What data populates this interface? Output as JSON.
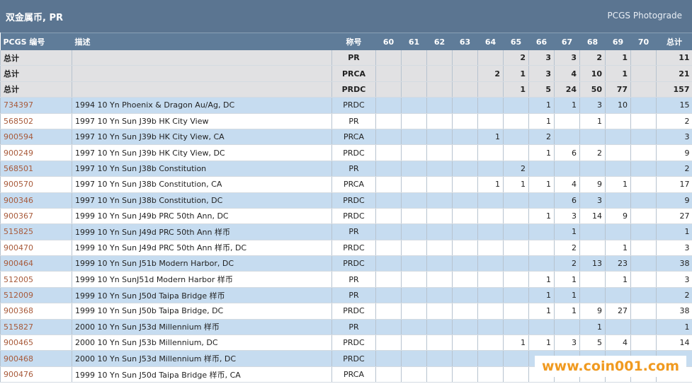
{
  "header": {
    "title": "双金属币, PR",
    "subtitle": "PCGS Photograde"
  },
  "table": {
    "columns": [
      "PCGS 编号",
      "描述",
      "称号",
      60,
      61,
      62,
      63,
      64,
      65,
      66,
      67,
      68,
      69,
      70,
      "总计"
    ],
    "rows": [
      [
        "总计",
        null,
        "PR",
        null,
        null,
        null,
        null,
        null,
        2,
        3,
        3,
        2,
        1,
        null,
        11
      ],
      [
        "总计",
        null,
        "PRCA",
        null,
        null,
        null,
        null,
        2,
        1,
        3,
        4,
        10,
        1,
        null,
        21
      ],
      [
        "总计",
        null,
        "PRDC",
        null,
        null,
        null,
        null,
        null,
        1,
        5,
        24,
        50,
        77,
        null,
        157
      ],
      [
        "734397",
        "1994 10 Yn Phoenix & Dragon Au/Ag, DC",
        "PRDC",
        null,
        null,
        null,
        null,
        null,
        null,
        1,
        1,
        3,
        10,
        null,
        15
      ],
      [
        "568502",
        "1997 10 Yn Sun J39b HK City View",
        "PR",
        null,
        null,
        null,
        null,
        null,
        null,
        1,
        null,
        1,
        null,
        null,
        2
      ],
      [
        "900594",
        "1997 10 Yn Sun J39b HK City View, CA",
        "PRCA",
        null,
        null,
        null,
        null,
        1,
        null,
        2,
        null,
        null,
        null,
        null,
        3
      ],
      [
        "900249",
        "1997 10 Yn Sun J39b HK City View, DC",
        "PRDC",
        null,
        null,
        null,
        null,
        null,
        null,
        1,
        6,
        2,
        null,
        null,
        9
      ],
      [
        "568501",
        "1997 10 Yn Sun J38b Constitution",
        "PR",
        null,
        null,
        null,
        null,
        null,
        2,
        null,
        null,
        null,
        null,
        null,
        2
      ],
      [
        "900570",
        "1997 10 Yn Sun J38b Constitution, CA",
        "PRCA",
        null,
        null,
        null,
        null,
        1,
        1,
        1,
        4,
        9,
        1,
        null,
        17
      ],
      [
        "900346",
        "1997 10 Yn Sun J38b Constitution, DC",
        "PRDC",
        null,
        null,
        null,
        null,
        null,
        null,
        null,
        6,
        3,
        null,
        null,
        9
      ],
      [
        "900367",
        "1999 10 Yn Sun J49b PRC 50th Ann, DC",
        "PRDC",
        null,
        null,
        null,
        null,
        null,
        null,
        1,
        3,
        14,
        9,
        null,
        27
      ],
      [
        "515825",
        "1999 10 Yn Sun J49d PRC 50th Ann 样币",
        "PR",
        null,
        null,
        null,
        null,
        null,
        null,
        null,
        1,
        null,
        null,
        null,
        1
      ],
      [
        "900470",
        "1999 10 Yn Sun J49d PRC 50th Ann 样币, DC",
        "PRDC",
        null,
        null,
        null,
        null,
        null,
        null,
        null,
        2,
        null,
        1,
        null,
        3
      ],
      [
        "900464",
        "1999 10 Yn Sun J51b Modern Harbor, DC",
        "PRDC",
        null,
        null,
        null,
        null,
        null,
        null,
        null,
        2,
        13,
        23,
        null,
        38
      ],
      [
        "512005",
        "1999 10 Yn SunJ51d Modern Harbor 样币",
        "PR",
        null,
        null,
        null,
        null,
        null,
        null,
        1,
        1,
        null,
        1,
        null,
        3
      ],
      [
        "512009",
        "1999 10 Yn Sun J50d Taipa Bridge 样币",
        "PR",
        null,
        null,
        null,
        null,
        null,
        null,
        1,
        1,
        null,
        null,
        null,
        2
      ],
      [
        "900368",
        "1999 10 Yn Sun J50b Taipa Bridge, DC",
        "PRDC",
        null,
        null,
        null,
        null,
        null,
        null,
        1,
        1,
        9,
        27,
        null,
        38
      ],
      [
        "515827",
        "2000 10 Yn Sun J53d Millennium 样币",
        "PR",
        null,
        null,
        null,
        null,
        null,
        null,
        null,
        null,
        1,
        null,
        null,
        1
      ],
      [
        "900465",
        "2000 10 Yn Sun J53b Millennium, DC",
        "PRDC",
        null,
        null,
        null,
        null,
        null,
        1,
        1,
        3,
        5,
        4,
        null,
        14
      ],
      [
        "900468",
        "2000 10 Yn Sun J53d Millennium 样币, DC",
        "PRDC",
        null,
        null,
        null,
        null,
        null,
        null,
        null,
        null,
        null,
        null,
        null,
        null
      ],
      [
        "900476",
        "1999 10 Yn Sun J50d Taipa Bridge 样币, CA",
        "PRCA",
        null,
        null,
        null,
        null,
        null,
        null,
        null,
        null,
        null,
        null,
        null,
        null
      ]
    ]
  },
  "watermark": "www.coin001.com"
}
